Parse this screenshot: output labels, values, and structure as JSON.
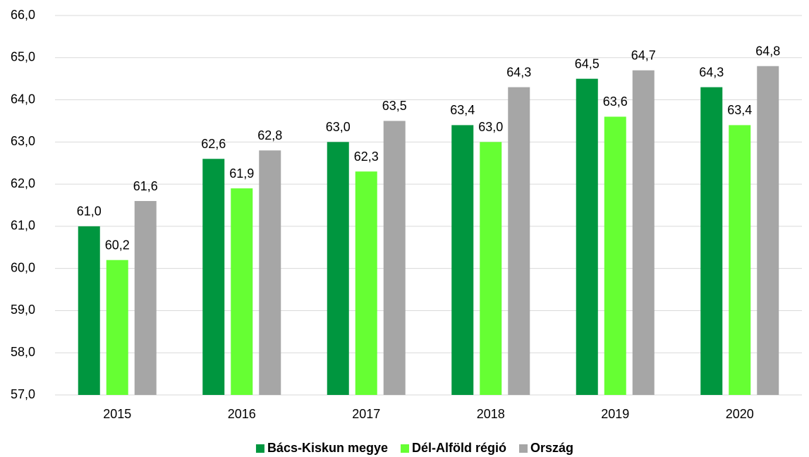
{
  "chart_data": {
    "type": "bar",
    "categories": [
      "2015",
      "2016",
      "2017",
      "2018",
      "2019",
      "2020"
    ],
    "series": [
      {
        "name": "Bács-Kiskun megye",
        "color": "#00963f",
        "values": [
          61.0,
          62.6,
          63.0,
          63.4,
          64.5,
          64.3
        ],
        "value_labels": [
          "61,0",
          "62,6",
          "63,0",
          "63,4",
          "64,5",
          "64,3"
        ]
      },
      {
        "name": "Dél-Alföld régió",
        "color": "#66ff33",
        "values": [
          60.2,
          61.9,
          62.3,
          63.0,
          63.6,
          63.4
        ],
        "value_labels": [
          "60,2",
          "61,9",
          "62,3",
          "63,0",
          "63,6",
          "63,4"
        ]
      },
      {
        "name": "Ország",
        "color": "#a6a6a6",
        "values": [
          61.6,
          62.8,
          63.5,
          64.3,
          64.7,
          64.8
        ],
        "value_labels": [
          "61,6",
          "62,8",
          "63,5",
          "64,3",
          "64,7",
          "64,8"
        ]
      }
    ],
    "ylim": [
      57,
      66
    ],
    "yticks": [
      {
        "value": 57,
        "label": "57,0"
      },
      {
        "value": 58,
        "label": "58,0"
      },
      {
        "value": 59,
        "label": "59,0"
      },
      {
        "value": 60,
        "label": "60,0"
      },
      {
        "value": 61,
        "label": "61,0"
      },
      {
        "value": 62,
        "label": "62,0"
      },
      {
        "value": 63,
        "label": "63,0"
      },
      {
        "value": 64,
        "label": "64,0"
      },
      {
        "value": 65,
        "label": "65,0"
      },
      {
        "value": 66,
        "label": "66,0"
      }
    ],
    "grid": true,
    "legend": "bottom"
  }
}
